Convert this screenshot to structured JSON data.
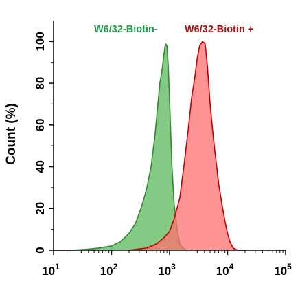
{
  "chart_data": {
    "type": "area",
    "title": "",
    "xlabel": "",
    "ylabel": "Count  (%)",
    "xscale": "log",
    "xlim": [
      10,
      100000
    ],
    "ylim": [
      0,
      110
    ],
    "grid": false,
    "legend": "top",
    "x_ticks": [
      {
        "value": 10,
        "base": "10",
        "exp": "1"
      },
      {
        "value": 100,
        "base": "10",
        "exp": "2"
      },
      {
        "value": 1000,
        "base": "10",
        "exp": "3"
      },
      {
        "value": 10000,
        "base": "10",
        "exp": "4"
      },
      {
        "value": 100000,
        "base": "10",
        "exp": "5"
      }
    ],
    "y_ticks": [
      "0",
      "20",
      "40",
      "60",
      "80",
      "100"
    ],
    "series": [
      {
        "name": "W6/32-Biotin-",
        "color": "#2e8b2e",
        "fill": "#6fbf6f",
        "x": [
          10,
          20,
          40,
          60,
          100,
          140,
          200,
          260,
          330,
          400,
          480,
          560,
          620,
          680,
          740,
          800,
          850,
          900,
          950,
          1000,
          1050,
          1100,
          1200,
          1350,
          1500,
          1700,
          2000
        ],
        "y": [
          0,
          0,
          0.5,
          1,
          2,
          4,
          8,
          13,
          21,
          29,
          40,
          55,
          68,
          80,
          86,
          94,
          99,
          98,
          88,
          72,
          55,
          40,
          22,
          10,
          3,
          1,
          0
        ]
      },
      {
        "name": "W6/32-Biotin +",
        "color": "#c00000",
        "fill": "#ff7070",
        "x": [
          200,
          400,
          600,
          800,
          1000,
          1200,
          1500,
          1800,
          2100,
          2400,
          2700,
          3000,
          3300,
          3700,
          4100,
          4500,
          5000,
          5500,
          6000,
          6500,
          7000,
          8000,
          9000,
          10000,
          11000,
          12500,
          15000,
          20000
        ],
        "y": [
          0,
          1,
          3,
          6,
          9,
          15,
          25,
          42,
          58,
          73,
          82,
          92,
          98,
          100,
          99,
          88,
          70,
          58,
          48,
          40,
          32,
          22,
          14,
          8,
          4,
          1,
          0,
          0
        ]
      }
    ]
  }
}
